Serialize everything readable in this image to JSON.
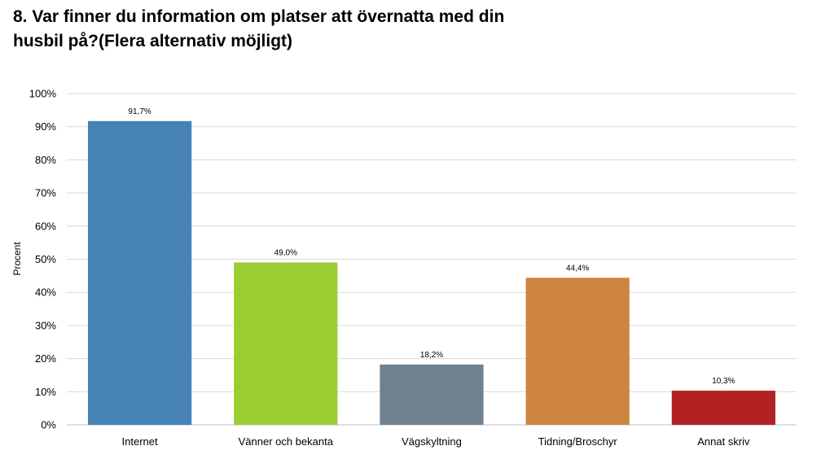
{
  "chart_data": {
    "type": "bar",
    "title": "8. Var finner du information om platser att övernatta med din\nhusbil på?(Flera alternativ möjligt)",
    "xlabel": "",
    "ylabel": "Procent",
    "categories": [
      "Internet",
      "Vänner och bekanta",
      "Vägskyltning",
      "Tidning/Broschyr",
      "Annat skriv"
    ],
    "values": [
      91.7,
      49.0,
      18.2,
      44.4,
      10.3
    ],
    "data_labels": [
      "91,7%",
      "49,0%",
      "18,2%",
      "44,4%",
      "10,3%"
    ],
    "colors": [
      "#4682B4",
      "#9ACD32",
      "#708090",
      "#CD853F",
      "#B22222"
    ],
    "ylim": [
      0,
      100
    ],
    "yticks": [
      "0%",
      "10%",
      "20%",
      "30%",
      "40%",
      "50%",
      "60%",
      "70%",
      "80%",
      "90%",
      "100%"
    ],
    "grid": true,
    "gridline_color": "#d9d9d9",
    "legend": "none"
  }
}
